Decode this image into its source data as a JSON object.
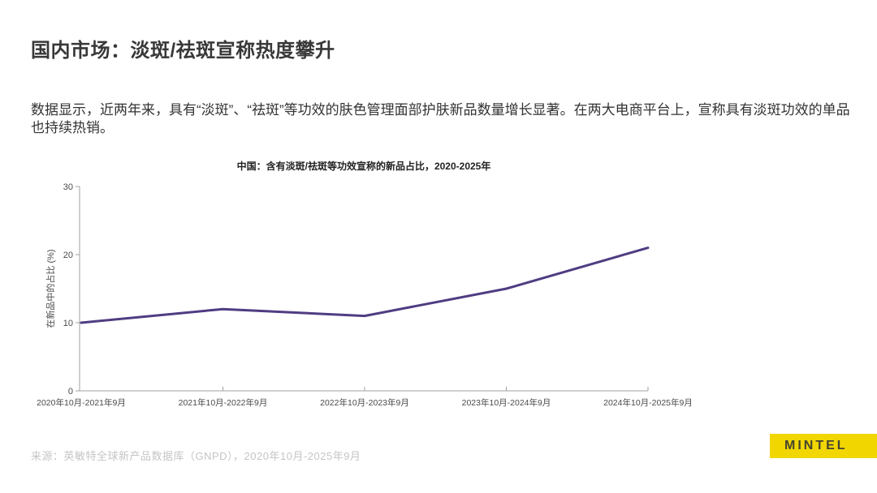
{
  "header": {
    "title": "国内市场：淡斑/祛斑宣称热度攀升"
  },
  "intro": {
    "text": "数据显示，近两年来，具有“淡斑”、“祛斑”等功效的肤色管理面部护肤新品数量增长显著。在两大电商平台上，宣称具有淡斑功效的单品也持续热销。"
  },
  "footer": {
    "source": "来源：英敏特全球新产品数据库（GNPD），2020年10月-2025年9月",
    "logo_text": "MINTEL"
  },
  "colors": {
    "line": "#503c82",
    "axis": "#a0a0a0",
    "tick_text": "#4a4a4a",
    "body_text": "#333333",
    "source_text": "#c5c5c5",
    "logo_bg": "#f2d600",
    "logo_text": "#45452f"
  },
  "chart_data": {
    "type": "line",
    "title": "中国：含有淡斑/祛斑等功效宣称的新品占比，2020-2025年",
    "xlabel": "",
    "ylabel": "在新品中的占比 (%)",
    "categories": [
      "2020年10月-2021年9月",
      "2021年10月-2022年9月",
      "2022年10月-2023年9月",
      "2023年10月-2024年9月",
      "2024年10月-2025年9月"
    ],
    "values": [
      10,
      12,
      11,
      15,
      21
    ],
    "ylim": [
      0,
      30
    ],
    "yticks": [
      0,
      10,
      20,
      30
    ],
    "grid": false,
    "legend": "none"
  }
}
